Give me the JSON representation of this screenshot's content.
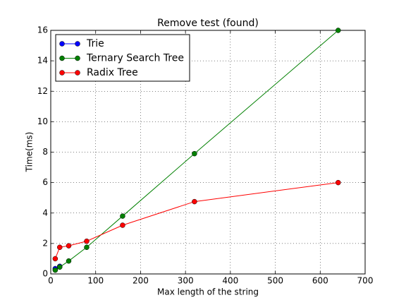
{
  "chart_data": {
    "type": "line",
    "title": "Remove test (found)",
    "x_label": "Max length of the string",
    "y_label": "Time(ms)",
    "x": [
      10,
      20,
      40,
      80,
      160,
      320,
      640
    ],
    "series": [
      {
        "name": "Trie",
        "color": "#0000ff",
        "values": [
          0.35,
          0.5,
          null,
          null,
          null,
          null,
          null
        ]
      },
      {
        "name": "Ternary Search Tree",
        "color": "#008000",
        "values": [
          0.25,
          0.45,
          0.85,
          1.75,
          3.8,
          7.9,
          16.0
        ]
      },
      {
        "name": "Radix Tree",
        "color": "#ff0000",
        "values": [
          1.0,
          1.75,
          1.85,
          2.15,
          3.2,
          4.75,
          6.0
        ]
      }
    ],
    "xlim": [
      0,
      700
    ],
    "xticks": [
      0,
      100,
      200,
      300,
      400,
      500,
      600,
      700
    ],
    "ylim": [
      0,
      16
    ],
    "yticks": [
      0,
      2,
      4,
      6,
      8,
      10,
      12,
      14,
      16
    ],
    "grid": true,
    "legend": "upper left"
  }
}
